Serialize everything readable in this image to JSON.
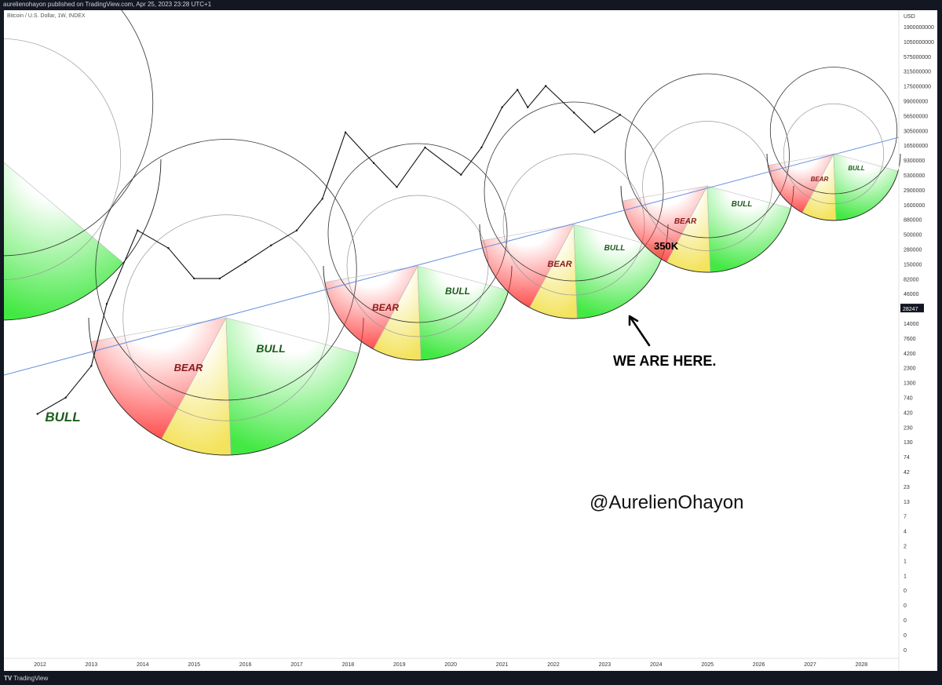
{
  "header": {
    "published_text": "aurelienohayon published on TradingView.com, Apr 25, 2023 23:28 UTC+1"
  },
  "symbol": {
    "label": "Bitcoin / U.S. Dollar, 1W, INDEX"
  },
  "footer": {
    "brand_icon": "TV",
    "brand": "TradingView"
  },
  "colors": {
    "bear": "#ff3b3b",
    "bull": "#2ee62e",
    "accumulation": "#f2e04a",
    "trendline": "#6a8fe0",
    "circle": "#333333"
  },
  "chart_data": {
    "type": "line",
    "y_scale": "log",
    "y_unit": "USD",
    "current_price": "28247",
    "x_tick_labels": [
      "2012",
      "2013",
      "2014",
      "2015",
      "2016",
      "2017",
      "2018",
      "2019",
      "2020",
      "2021",
      "2022",
      "2023",
      "2024",
      "2025",
      "2026",
      "2027",
      "2028"
    ],
    "y_tick_labels": [
      "1900000000",
      "1050000000",
      "575000000",
      "315000000",
      "175000000",
      "99000000",
      "56500000",
      "30500000",
      "16500000",
      "9300000",
      "5300000",
      "2900000",
      "1600000",
      "880000",
      "500000",
      "280000",
      "150000",
      "82000",
      "46000",
      "28247",
      "14000",
      "7600",
      "4200",
      "2300",
      "1300",
      "740",
      "420",
      "230",
      "130",
      "74",
      "42",
      "23",
      "13",
      "7",
      "4",
      "2",
      "1",
      "1",
      "0",
      "0",
      "0",
      "0",
      "0"
    ],
    "cycle_labels": [
      {
        "text": "BULL",
        "kind": "bull"
      },
      {
        "text": "BEAR",
        "kind": "bear"
      },
      {
        "text": "BULL",
        "kind": "bull"
      },
      {
        "text": "BEAR",
        "kind": "bear"
      },
      {
        "text": "BULL",
        "kind": "bull"
      },
      {
        "text": "BEAR",
        "kind": "bear"
      },
      {
        "text": "BULL",
        "kind": "bull"
      },
      {
        "text": "BEAR",
        "kind": "bear"
      },
      {
        "text": "BULL",
        "kind": "bull"
      },
      {
        "text": "BEAR",
        "kind": "bear"
      },
      {
        "text": "BULL",
        "kind": "bull"
      }
    ],
    "annotations": {
      "target": "350K",
      "current": "WE ARE HERE.",
      "watermark": "@AurelienOhayon"
    },
    "price_path_approx": [
      {
        "date": "2011.95",
        "price": "5"
      },
      {
        "date": "2012.5",
        "price": "8"
      },
      {
        "date": "2013.0",
        "price": "20"
      },
      {
        "date": "2013.3",
        "price": "120"
      },
      {
        "date": "2013.9",
        "price": "1000"
      },
      {
        "date": "2014.5",
        "price": "600"
      },
      {
        "date": "2015.0",
        "price": "250"
      },
      {
        "date": "2015.5",
        "price": "250"
      },
      {
        "date": "2016.0",
        "price": "400"
      },
      {
        "date": "2016.5",
        "price": "650"
      },
      {
        "date": "2017.0",
        "price": "1000"
      },
      {
        "date": "2017.5",
        "price": "2500"
      },
      {
        "date": "2017.95",
        "price": "17000"
      },
      {
        "date": "2018.5",
        "price": "7000"
      },
      {
        "date": "2018.95",
        "price": "3500"
      },
      {
        "date": "2019.5",
        "price": "11000"
      },
      {
        "date": "2020.2",
        "price": "5000"
      },
      {
        "date": "2020.6",
        "price": "11000"
      },
      {
        "date": "2021.0",
        "price": "35000"
      },
      {
        "date": "2021.3",
        "price": "58000"
      },
      {
        "date": "2021.5",
        "price": "35000"
      },
      {
        "date": "2021.85",
        "price": "65000"
      },
      {
        "date": "2022.4",
        "price": "30000"
      },
      {
        "date": "2022.8",
        "price": "17000"
      },
      {
        "date": "2023.3",
        "price": "28247"
      }
    ]
  }
}
